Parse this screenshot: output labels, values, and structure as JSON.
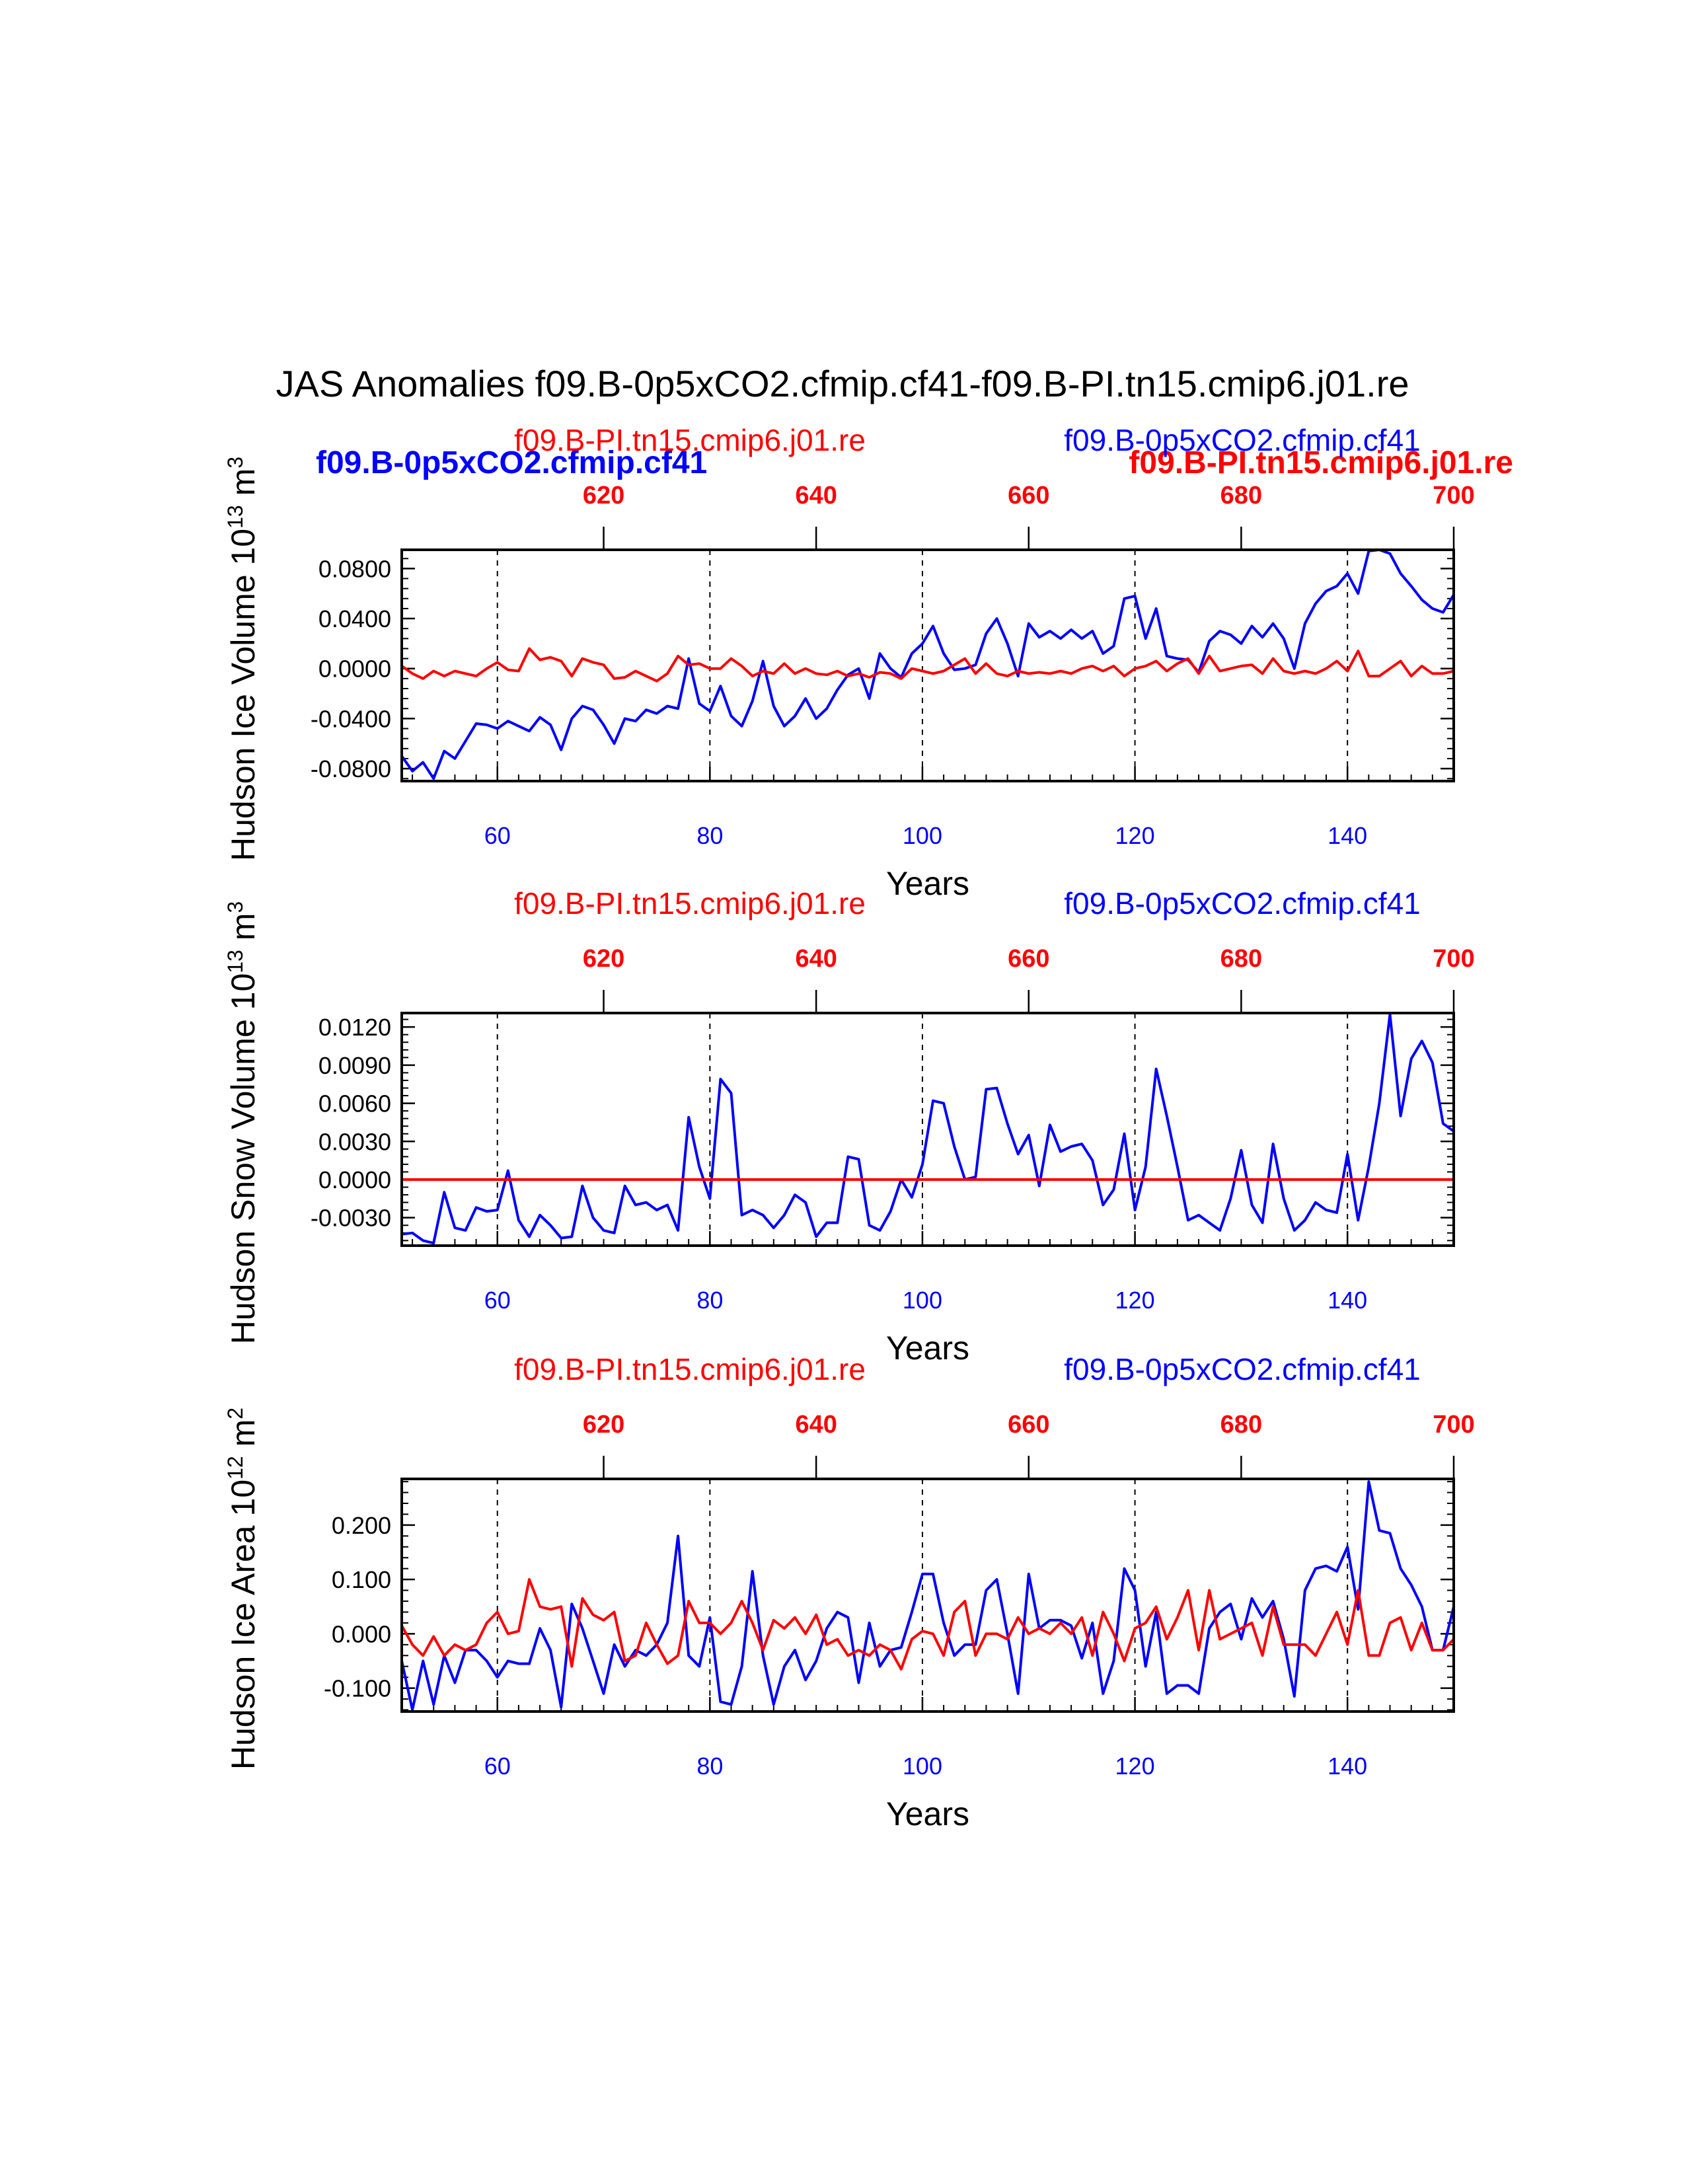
{
  "title": "JAS Anomalies f09.B-0p5xCO2.cfmip.cf41-f09.B-PI.tn15.cmip6.j01.re",
  "colors": {
    "blue": "#0000ff",
    "red": "#ff0000",
    "axis": "#000000"
  },
  "legend": {
    "blue_bold": "f09.B-0p5xCO2.cfmip.cf41",
    "red_bold": "f09.B-PI.tn15.cmip6.j01.re"
  },
  "chart_data": [
    {
      "type": "line",
      "panel": "ice-volume",
      "ylabel": "Hudson Ice Volume 10",
      "ylabel_exp": "13",
      "ylabel_unit": " m",
      "ylabel_unit_exp": "3",
      "xlabel": "Years",
      "left_label": "f09.B-PI.tn15.cmip6.j01.re",
      "right_label": "f09.B-0p5xCO2.cfmip.cf41",
      "xlim": [
        51,
        150
      ],
      "ylim": [
        -0.09,
        0.095
      ],
      "yticks": [
        -0.08,
        -0.04,
        0.0,
        0.04,
        0.08
      ],
      "ytick_labels": [
        "-0.0800",
        "-0.0400",
        "0.0000",
        "0.0400",
        "0.0800"
      ],
      "bottom_ticks": [
        60,
        80,
        100,
        120,
        140
      ],
      "bottom_tick_labels": [
        "60",
        "80",
        "100",
        "120",
        "140"
      ],
      "top_ticks": [
        70,
        90,
        110,
        130,
        150
      ],
      "top_tick_labels": [
        "620",
        "640",
        "660",
        "680",
        "700"
      ],
      "x": [
        51,
        52,
        53,
        54,
        55,
        56,
        57,
        58,
        59,
        60,
        61,
        62,
        63,
        64,
        65,
        66,
        67,
        68,
        69,
        70,
        71,
        72,
        73,
        74,
        75,
        76,
        77,
        78,
        79,
        80,
        81,
        82,
        83,
        84,
        85,
        86,
        87,
        88,
        89,
        90,
        91,
        92,
        93,
        94,
        95,
        96,
        97,
        98,
        99,
        100,
        101,
        102,
        103,
        104,
        105,
        106,
        107,
        108,
        109,
        110,
        111,
        112,
        113,
        114,
        115,
        116,
        117,
        118,
        119,
        120,
        121,
        122,
        123,
        124,
        125,
        126,
        127,
        128,
        129,
        130,
        131,
        132,
        133,
        134,
        135,
        136,
        137,
        138,
        139,
        140,
        141,
        142,
        143,
        144,
        145,
        146,
        147,
        148,
        149,
        150
      ],
      "series": [
        {
          "name": "f09.B-0p5xCO2.cfmip.cf41",
          "color": "blue",
          "values": [
            -0.07,
            -0.082,
            -0.075,
            -0.088,
            -0.066,
            -0.072,
            -0.058,
            -0.044,
            -0.045,
            -0.048,
            -0.042,
            -0.046,
            -0.05,
            -0.039,
            -0.045,
            -0.065,
            -0.04,
            -0.03,
            -0.033,
            -0.045,
            -0.06,
            -0.04,
            -0.042,
            -0.033,
            -0.036,
            -0.03,
            -0.032,
            0.008,
            -0.028,
            -0.034,
            -0.014,
            -0.038,
            -0.046,
            -0.026,
            0.006,
            -0.03,
            -0.046,
            -0.038,
            -0.024,
            -0.04,
            -0.032,
            -0.017,
            -0.005,
            0.0,
            -0.024,
            0.012,
            0.0,
            -0.007,
            0.012,
            0.02,
            0.034,
            0.012,
            -0.001,
            0.0,
            0.003,
            0.028,
            0.04,
            0.02,
            -0.006,
            0.036,
            0.025,
            0.03,
            0.024,
            0.031,
            0.024,
            0.03,
            0.012,
            0.018,
            0.056,
            0.058,
            0.024,
            0.048,
            0.01,
            0.008,
            0.007,
            -0.003,
            0.022,
            0.03,
            0.027,
            0.02,
            0.034,
            0.025,
            0.036,
            0.024,
            0.0,
            0.036,
            0.052,
            0.062,
            0.066,
            0.076,
            0.06,
            0.094,
            0.096,
            0.092,
            0.076,
            0.066,
            0.055,
            0.048,
            0.045,
            0.059
          ]
        },
        {
          "name": "f09.B-PI.tn15.cmip6.j01.re",
          "color": "red",
          "values": [
            0.002,
            -0.004,
            -0.008,
            -0.002,
            -0.006,
            -0.002,
            -0.004,
            -0.006,
            0.0,
            0.005,
            -0.001,
            -0.002,
            0.016,
            0.007,
            0.009,
            0.006,
            -0.006,
            0.008,
            0.005,
            0.003,
            -0.008,
            -0.007,
            -0.002,
            -0.006,
            -0.01,
            -0.004,
            0.01,
            0.003,
            0.004,
            0.0,
            0.0,
            0.008,
            0.002,
            -0.006,
            -0.002,
            -0.004,
            0.004,
            -0.004,
            0.0,
            -0.004,
            -0.005,
            -0.002,
            -0.006,
            -0.004,
            -0.007,
            -0.003,
            -0.004,
            -0.008,
            0.0,
            -0.002,
            -0.004,
            -0.002,
            0.003,
            0.008,
            -0.004,
            0.004,
            -0.004,
            -0.006,
            -0.002,
            -0.004,
            -0.003,
            -0.004,
            -0.002,
            -0.004,
            0.0,
            0.002,
            -0.002,
            0.002,
            -0.006,
            0.0,
            0.002,
            0.006,
            -0.002,
            0.004,
            0.008,
            -0.004,
            0.01,
            -0.002,
            0.0,
            0.002,
            0.003,
            -0.004,
            0.008,
            -0.002,
            -0.004,
            -0.002,
            -0.004,
            0.0,
            0.006,
            -0.002,
            0.014,
            -0.006,
            -0.006,
            0.0,
            0.006,
            -0.006,
            0.002,
            -0.004,
            -0.004,
            -0.002
          ]
        }
      ]
    },
    {
      "type": "line",
      "panel": "snow-volume",
      "ylabel": "Hudson Snow Volume 10",
      "ylabel_exp": "13",
      "ylabel_unit": " m",
      "ylabel_unit_exp": "3",
      "xlabel": "Years",
      "left_label": "f09.B-PI.tn15.cmip6.j01.re",
      "right_label": "f09.B-0p5xCO2.cfmip.cf41",
      "xlim": [
        51,
        150
      ],
      "ylim": [
        -0.0052,
        0.0131
      ],
      "yticks": [
        -0.003,
        0.0,
        0.003,
        0.006,
        0.009,
        0.012
      ],
      "ytick_labels": [
        "-0.0030",
        "0.0000",
        "0.0030",
        "0.0060",
        "0.0090",
        "0.0120"
      ],
      "bottom_ticks": [
        60,
        80,
        100,
        120,
        140
      ],
      "bottom_tick_labels": [
        "60",
        "80",
        "100",
        "120",
        "140"
      ],
      "top_ticks": [
        70,
        90,
        110,
        130,
        150
      ],
      "top_tick_labels": [
        "620",
        "640",
        "660",
        "680",
        "700"
      ],
      "x": [
        51,
        52,
        53,
        54,
        55,
        56,
        57,
        58,
        59,
        60,
        61,
        62,
        63,
        64,
        65,
        66,
        67,
        68,
        69,
        70,
        71,
        72,
        73,
        74,
        75,
        76,
        77,
        78,
        79,
        80,
        81,
        82,
        83,
        84,
        85,
        86,
        87,
        88,
        89,
        90,
        91,
        92,
        93,
        94,
        95,
        96,
        97,
        98,
        99,
        100,
        101,
        102,
        103,
        104,
        105,
        106,
        107,
        108,
        109,
        110,
        111,
        112,
        113,
        114,
        115,
        116,
        117,
        118,
        119,
        120,
        121,
        122,
        123,
        124,
        125,
        126,
        127,
        128,
        129,
        130,
        131,
        132,
        133,
        134,
        135,
        136,
        137,
        138,
        139,
        140,
        141,
        142,
        143,
        144,
        145,
        146,
        147,
        148,
        149,
        150
      ],
      "series": [
        {
          "name": "f09.B-0p5xCO2.cfmip.cf41",
          "color": "blue",
          "values": [
            -0.0043,
            -0.0042,
            -0.0048,
            -0.005,
            -0.001,
            -0.0038,
            -0.004,
            -0.0022,
            -0.0025,
            -0.0024,
            0.0007,
            -0.0032,
            -0.0045,
            -0.0028,
            -0.0036,
            -0.0046,
            -0.0045,
            -0.0005,
            -0.003,
            -0.004,
            -0.0042,
            -0.0005,
            -0.002,
            -0.0018,
            -0.0024,
            -0.002,
            -0.004,
            0.0049,
            0.001,
            -0.0015,
            0.0079,
            0.0068,
            -0.0028,
            -0.0024,
            -0.0028,
            -0.0038,
            -0.0028,
            -0.0012,
            -0.0018,
            -0.0045,
            -0.0034,
            -0.0034,
            0.0018,
            0.0016,
            -0.0036,
            -0.004,
            -0.0025,
            0.0,
            -0.0014,
            0.0012,
            0.0062,
            0.006,
            0.0026,
            0.0,
            0.0002,
            0.0071,
            0.0072,
            0.0044,
            0.002,
            0.0035,
            -0.0005,
            0.0043,
            0.0022,
            0.0026,
            0.0028,
            0.0015,
            -0.002,
            -0.0008,
            0.0036,
            -0.0024,
            0.001,
            0.0087,
            0.005,
            0.001,
            -0.0032,
            -0.0028,
            -0.0034,
            -0.004,
            -0.0015,
            0.0023,
            -0.002,
            -0.0034,
            0.0028,
            -0.0015,
            -0.004,
            -0.0032,
            -0.0018,
            -0.0024,
            -0.0026,
            0.002,
            -0.0032,
            0.001,
            0.006,
            0.013,
            0.005,
            0.0095,
            0.0109,
            0.0092,
            0.0044,
            0.0038
          ]
        },
        {
          "name": "f09.B-PI.tn15.cmip6.j01.re",
          "color": "red",
          "values": [
            0.0,
            0.0,
            0.0,
            0.0,
            0.0,
            0.0,
            0.0,
            0.0,
            0.0,
            0.0,
            0.0,
            0.0,
            0.0,
            0.0,
            0.0,
            0.0,
            0.0,
            0.0,
            0.0,
            0.0,
            0.0,
            0.0,
            0.0,
            0.0,
            0.0,
            0.0,
            0.0,
            0.0,
            0.0,
            0.0,
            0.0,
            0.0,
            0.0,
            0.0,
            0.0,
            0.0,
            0.0,
            0.0,
            0.0,
            0.0,
            0.0,
            0.0,
            0.0,
            0.0,
            0.0,
            0.0,
            0.0,
            0.0,
            0.0,
            0.0,
            0.0,
            0.0,
            0.0,
            0.0,
            0.0,
            0.0,
            0.0,
            0.0,
            0.0,
            0.0,
            0.0,
            0.0,
            0.0,
            0.0,
            0.0,
            0.0,
            0.0,
            0.0,
            0.0,
            0.0,
            0.0,
            0.0,
            0.0,
            0.0,
            0.0,
            0.0,
            0.0,
            0.0,
            0.0,
            0.0,
            0.0,
            0.0,
            0.0,
            0.0,
            0.0,
            0.0,
            0.0,
            0.0,
            0.0,
            0.0,
            0.0,
            0.0,
            0.0,
            0.0,
            0.0,
            0.0,
            0.0,
            0.0,
            0.0,
            0.0
          ]
        }
      ]
    },
    {
      "type": "line",
      "panel": "ice-area",
      "ylabel": "Hudson Ice Area 10",
      "ylabel_exp": "12",
      "ylabel_unit": " m",
      "ylabel_unit_exp": "2",
      "xlabel": "Years",
      "left_label": "f09.B-PI.tn15.cmip6.j01.re",
      "right_label": "f09.B-0p5xCO2.cfmip.cf41",
      "xlim": [
        51,
        150
      ],
      "ylim": [
        -0.143,
        0.285
      ],
      "yticks": [
        -0.1,
        0.0,
        0.1,
        0.2
      ],
      "ytick_labels": [
        "-0.100",
        "0.000",
        "0.100",
        "0.200"
      ],
      "bottom_ticks": [
        60,
        80,
        100,
        120,
        140
      ],
      "bottom_tick_labels": [
        "60",
        "80",
        "100",
        "120",
        "140"
      ],
      "top_ticks": [
        70,
        90,
        110,
        130,
        150
      ],
      "top_tick_labels": [
        "620",
        "640",
        "660",
        "680",
        "700"
      ],
      "x": [
        51,
        52,
        53,
        54,
        55,
        56,
        57,
        58,
        59,
        60,
        61,
        62,
        63,
        64,
        65,
        66,
        67,
        68,
        69,
        70,
        71,
        72,
        73,
        74,
        75,
        76,
        77,
        78,
        79,
        80,
        81,
        82,
        83,
        84,
        85,
        86,
        87,
        88,
        89,
        90,
        91,
        92,
        93,
        94,
        95,
        96,
        97,
        98,
        99,
        100,
        101,
        102,
        103,
        104,
        105,
        106,
        107,
        108,
        109,
        110,
        111,
        112,
        113,
        114,
        115,
        116,
        117,
        118,
        119,
        120,
        121,
        122,
        123,
        124,
        125,
        126,
        127,
        128,
        129,
        130,
        131,
        132,
        133,
        134,
        135,
        136,
        137,
        138,
        139,
        140,
        141,
        142,
        143,
        144,
        145,
        146,
        147,
        148,
        149,
        150
      ],
      "series": [
        {
          "name": "f09.B-0p5xCO2.cfmip.cf41",
          "color": "blue",
          "values": [
            -0.05,
            -0.14,
            -0.05,
            -0.13,
            -0.04,
            -0.09,
            -0.03,
            -0.03,
            -0.05,
            -0.08,
            -0.05,
            -0.055,
            -0.055,
            0.01,
            -0.03,
            -0.135,
            0.055,
            0.01,
            -0.05,
            -0.11,
            -0.02,
            -0.06,
            -0.03,
            -0.04,
            -0.02,
            0.02,
            0.18,
            -0.04,
            -0.06,
            0.03,
            -0.125,
            -0.13,
            -0.06,
            0.115,
            -0.04,
            -0.13,
            -0.06,
            -0.03,
            -0.085,
            -0.05,
            0.01,
            0.04,
            0.03,
            -0.09,
            0.02,
            -0.06,
            -0.03,
            -0.025,
            0.04,
            0.11,
            0.11,
            0.02,
            -0.04,
            -0.02,
            -0.02,
            0.08,
            0.1,
            0.0,
            -0.11,
            0.11,
            0.01,
            0.025,
            0.025,
            0.015,
            -0.045,
            0.02,
            -0.11,
            -0.05,
            0.12,
            0.08,
            -0.06,
            0.04,
            -0.11,
            -0.095,
            -0.095,
            -0.11,
            0.01,
            0.04,
            0.055,
            -0.01,
            0.065,
            0.03,
            0.06,
            -0.01,
            -0.115,
            0.08,
            0.12,
            0.125,
            0.115,
            0.16,
            0.045,
            0.28,
            0.19,
            0.185,
            0.12,
            0.09,
            0.05,
            -0.03,
            -0.03,
            0.05
          ]
        },
        {
          "name": "f09.B-PI.tn15.cmip6.j01.re",
          "color": "red",
          "values": [
            0.015,
            -0.02,
            -0.04,
            -0.005,
            -0.04,
            -0.02,
            -0.03,
            -0.02,
            0.02,
            0.04,
            0.0,
            0.005,
            0.1,
            0.05,
            0.045,
            0.05,
            -0.06,
            0.065,
            0.035,
            0.025,
            0.04,
            -0.05,
            -0.04,
            0.02,
            -0.02,
            -0.055,
            -0.04,
            0.06,
            0.02,
            0.02,
            0.0,
            0.02,
            0.06,
            0.02,
            -0.03,
            0.025,
            0.01,
            0.03,
            0.0,
            0.035,
            -0.02,
            -0.01,
            -0.04,
            -0.03,
            -0.04,
            -0.02,
            -0.03,
            -0.065,
            -0.01,
            0.005,
            0.0,
            -0.04,
            0.04,
            0.06,
            -0.04,
            0.0,
            0.0,
            -0.01,
            0.03,
            0.0,
            0.01,
            0.0,
            0.02,
            0.0,
            0.03,
            -0.04,
            0.04,
            0.0,
            -0.05,
            0.01,
            0.02,
            0.05,
            -0.01,
            0.03,
            0.08,
            -0.03,
            0.08,
            -0.01,
            0.0,
            0.01,
            0.02,
            -0.04,
            0.05,
            -0.02,
            -0.02,
            -0.02,
            -0.04,
            0.0,
            0.04,
            -0.02,
            0.08,
            -0.04,
            -0.04,
            0.02,
            0.03,
            -0.03,
            0.02,
            -0.03,
            -0.03,
            -0.01
          ]
        }
      ]
    }
  ]
}
